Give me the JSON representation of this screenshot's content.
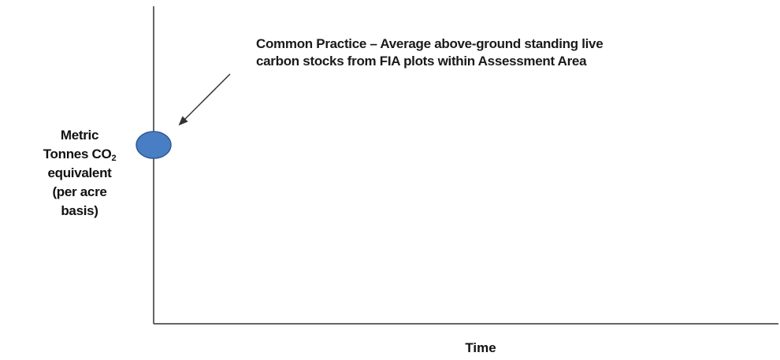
{
  "diagram": {
    "y_axis_label": {
      "line1": "Metric",
      "line2_prefix": "Tonnes CO",
      "line2_subscript": "2",
      "line3": "equivalent",
      "line4": "(per acre",
      "line5": "basis)"
    },
    "x_axis_label": "Time",
    "annotation": {
      "line1": "Common Practice – Average above-ground standing live",
      "line2": "carbon stocks from FIA plots within Assessment Area"
    },
    "colors": {
      "point_fill": "#4a7ec4",
      "point_stroke": "#2e5a95",
      "axis": "#333333",
      "arrow": "#333333"
    }
  }
}
